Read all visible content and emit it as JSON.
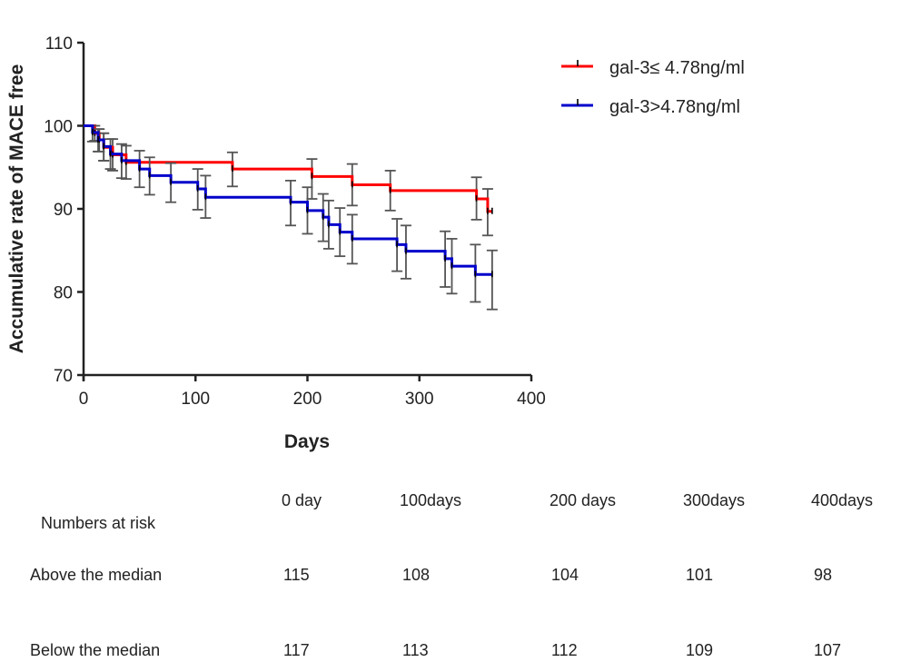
{
  "chart_data": {
    "type": "line",
    "subtype": "kaplan-meier step",
    "xlabel": "Days",
    "ylabel": "Accumulative rate of MACE free",
    "xlim": [
      0,
      400
    ],
    "ylim": [
      70,
      110
    ],
    "xticks": [
      0,
      100,
      200,
      300,
      400
    ],
    "yticks": [
      70,
      80,
      90,
      100,
      110
    ],
    "grid": false,
    "legend_position": "top-right",
    "series": [
      {
        "name": "gal-3≤ 4.78ng/ml",
        "color": "#ff0000",
        "steps": [
          [
            0,
            100
          ],
          [
            10,
            99.1
          ],
          [
            14,
            98.3
          ],
          [
            18,
            97.4
          ],
          [
            26,
            96.5
          ],
          [
            38,
            95.6
          ],
          [
            133,
            94.8
          ],
          [
            204,
            93.9
          ],
          [
            240,
            92.9
          ],
          [
            274,
            92.2
          ],
          [
            351,
            91.2
          ],
          [
            361,
            89.7
          ],
          [
            365,
            89.7
          ]
        ],
        "error_bars": [
          [
            10,
            98.2,
            100
          ],
          [
            14,
            96.9,
            99.6
          ],
          [
            18,
            95.8,
            99.1
          ],
          [
            26,
            94.6,
            98.4
          ],
          [
            38,
            93.6,
            97.6
          ],
          [
            133,
            92.7,
            96.8
          ],
          [
            204,
            91.2,
            96.0
          ],
          [
            240,
            90.4,
            95.4
          ],
          [
            274,
            89.8,
            94.6
          ],
          [
            351,
            88.7,
            93.8
          ],
          [
            361,
            86.8,
            92.4
          ]
        ]
      },
      {
        "name": "gal-3>4.78ng/ml",
        "color": "#0000cc",
        "steps": [
          [
            0,
            100
          ],
          [
            8,
            99.2
          ],
          [
            13,
            98.3
          ],
          [
            18,
            97.5
          ],
          [
            24,
            96.6
          ],
          [
            34,
            95.8
          ],
          [
            50,
            94.8
          ],
          [
            59,
            94.0
          ],
          [
            78,
            93.2
          ],
          [
            102,
            92.4
          ],
          [
            109,
            91.4
          ],
          [
            185,
            90.8
          ],
          [
            200,
            89.8
          ],
          [
            214,
            89.0
          ],
          [
            219,
            88.1
          ],
          [
            229,
            87.2
          ],
          [
            240,
            86.4
          ],
          [
            280,
            85.7
          ],
          [
            288,
            84.9
          ],
          [
            323,
            84.0
          ],
          [
            329,
            83.1
          ],
          [
            350,
            82.1
          ],
          [
            365,
            82.1
          ]
        ],
        "error_bars": [
          [
            8,
            98.1,
            100
          ],
          [
            13,
            96.9,
            99.6
          ],
          [
            18,
            95.8,
            99.1
          ],
          [
            24,
            94.8,
            98.4
          ],
          [
            34,
            93.7,
            97.8
          ],
          [
            50,
            92.6,
            97.0
          ],
          [
            59,
            91.7,
            96.2
          ],
          [
            78,
            90.8,
            95.5
          ],
          [
            102,
            89.9,
            94.8
          ],
          [
            109,
            88.9,
            94.0
          ],
          [
            185,
            88.0,
            93.4
          ],
          [
            200,
            87.0,
            92.6
          ],
          [
            214,
            86.1,
            91.8
          ],
          [
            219,
            85.2,
            91.0
          ],
          [
            229,
            84.3,
            90.1
          ],
          [
            240,
            83.4,
            89.3
          ],
          [
            280,
            82.5,
            88.8
          ],
          [
            288,
            81.6,
            88.0
          ],
          [
            323,
            80.6,
            87.3
          ],
          [
            329,
            79.8,
            86.4
          ],
          [
            350,
            78.8,
            85.7
          ],
          [
            365,
            77.9,
            85.0
          ]
        ]
      }
    ]
  },
  "risk_table": {
    "title": "Numbers at risk",
    "columns": [
      "0 day",
      "100days",
      "200 days",
      "300days",
      "400days"
    ],
    "rows": [
      {
        "label": "Above the median",
        "values": [
          "115",
          "108",
          "104",
          "101",
          "98"
        ]
      },
      {
        "label": "Below the median",
        "values": [
          "117",
          "113",
          "112",
          "109",
          "107"
        ]
      }
    ]
  }
}
